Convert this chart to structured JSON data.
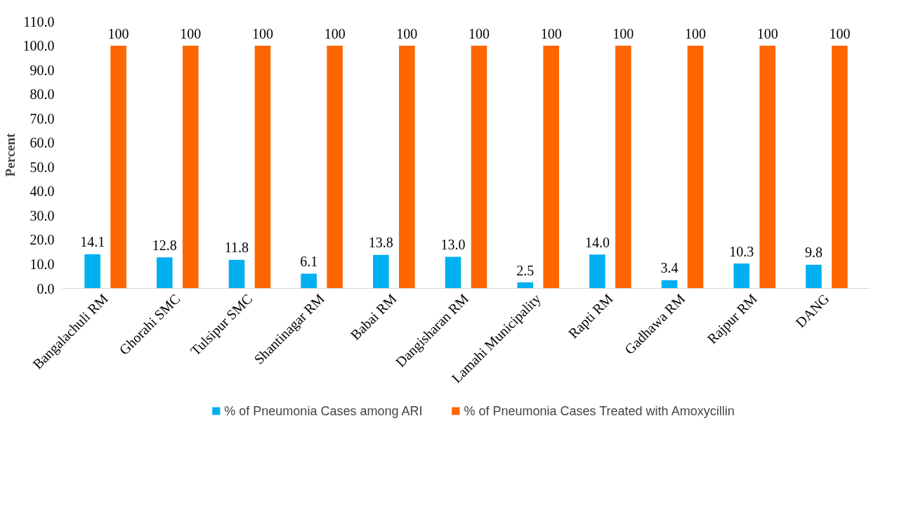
{
  "chart_data": {
    "type": "bar",
    "ylabel": "Percent",
    "categories": [
      "Bangalachuli RM",
      "Ghorahi SMC",
      "Tulsipur SMC",
      "Shantinagar RM",
      "Babai RM",
      "Dangisharan RM",
      "Lamahi Municipality",
      "Rapti RM",
      "Gadhawa RM",
      "Rajpur RM",
      "DANG"
    ],
    "series": [
      {
        "name": "% of Pneumonia Cases among ARI",
        "color": "#00b0f0",
        "values": [
          14.1,
          12.8,
          11.8,
          6.1,
          13.8,
          13.0,
          2.5,
          14.0,
          3.4,
          10.3,
          9.8
        ],
        "value_labels": [
          "14.1",
          "12.8",
          "11.8",
          "6.1",
          "13.8",
          "13.0",
          "2.5",
          "14.0",
          "3.4",
          "10.3",
          "9.8"
        ]
      },
      {
        "name": "% of Pneumonia Cases Treated with Amoxycillin",
        "color": "#ff6600",
        "values": [
          100,
          100,
          100,
          100,
          100,
          100,
          100,
          100,
          100,
          100,
          100
        ],
        "value_labels": [
          "100",
          "100",
          "100",
          "100",
          "100",
          "100",
          "100",
          "100",
          "100",
          "100",
          "100"
        ]
      }
    ],
    "ylim": [
      0,
      110
    ],
    "yticks": [
      {
        "value": 0,
        "label": "0.0"
      },
      {
        "value": 10,
        "label": "10.0"
      },
      {
        "value": 20,
        "label": "20.0"
      },
      {
        "value": 30,
        "label": "30.0"
      },
      {
        "value": 40,
        "label": "40.0"
      },
      {
        "value": 50,
        "label": "50.0"
      },
      {
        "value": 60,
        "label": "60.0"
      },
      {
        "value": 70,
        "label": "70.0"
      },
      {
        "value": 80,
        "label": "80.0"
      },
      {
        "value": 90,
        "label": "90.0"
      },
      {
        "value": 100,
        "label": "100.0"
      },
      {
        "value": 110,
        "label": "110.0"
      }
    ],
    "grid": false,
    "legend": "bottom"
  }
}
